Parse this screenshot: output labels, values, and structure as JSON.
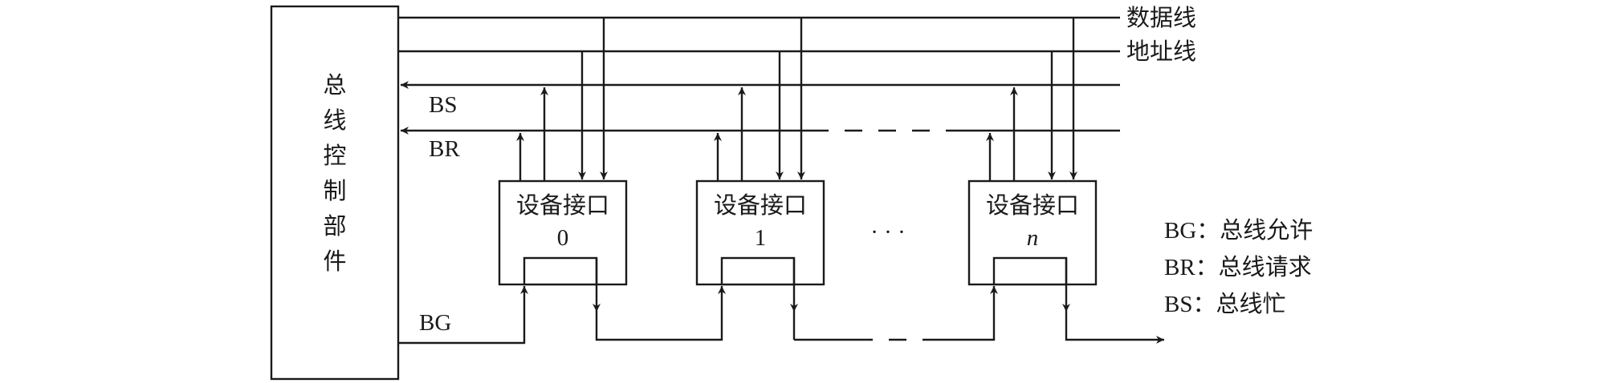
{
  "controller": {
    "label": [
      "总",
      "线",
      "控",
      "制",
      "部",
      "件"
    ]
  },
  "bus_lines": {
    "data": "数据线",
    "address": "地址线"
  },
  "signals": {
    "bs": "BS",
    "br": "BR",
    "bg": "BG"
  },
  "devices": [
    {
      "label": "设备接口",
      "index": "0"
    },
    {
      "label": "设备接口",
      "index": "1"
    },
    {
      "label": "设备接口",
      "index": "n"
    }
  ],
  "ellipsis": "· · ·",
  "legend": [
    "BG：总线允许",
    "BR：总线请求",
    "BS：总线忙"
  ]
}
